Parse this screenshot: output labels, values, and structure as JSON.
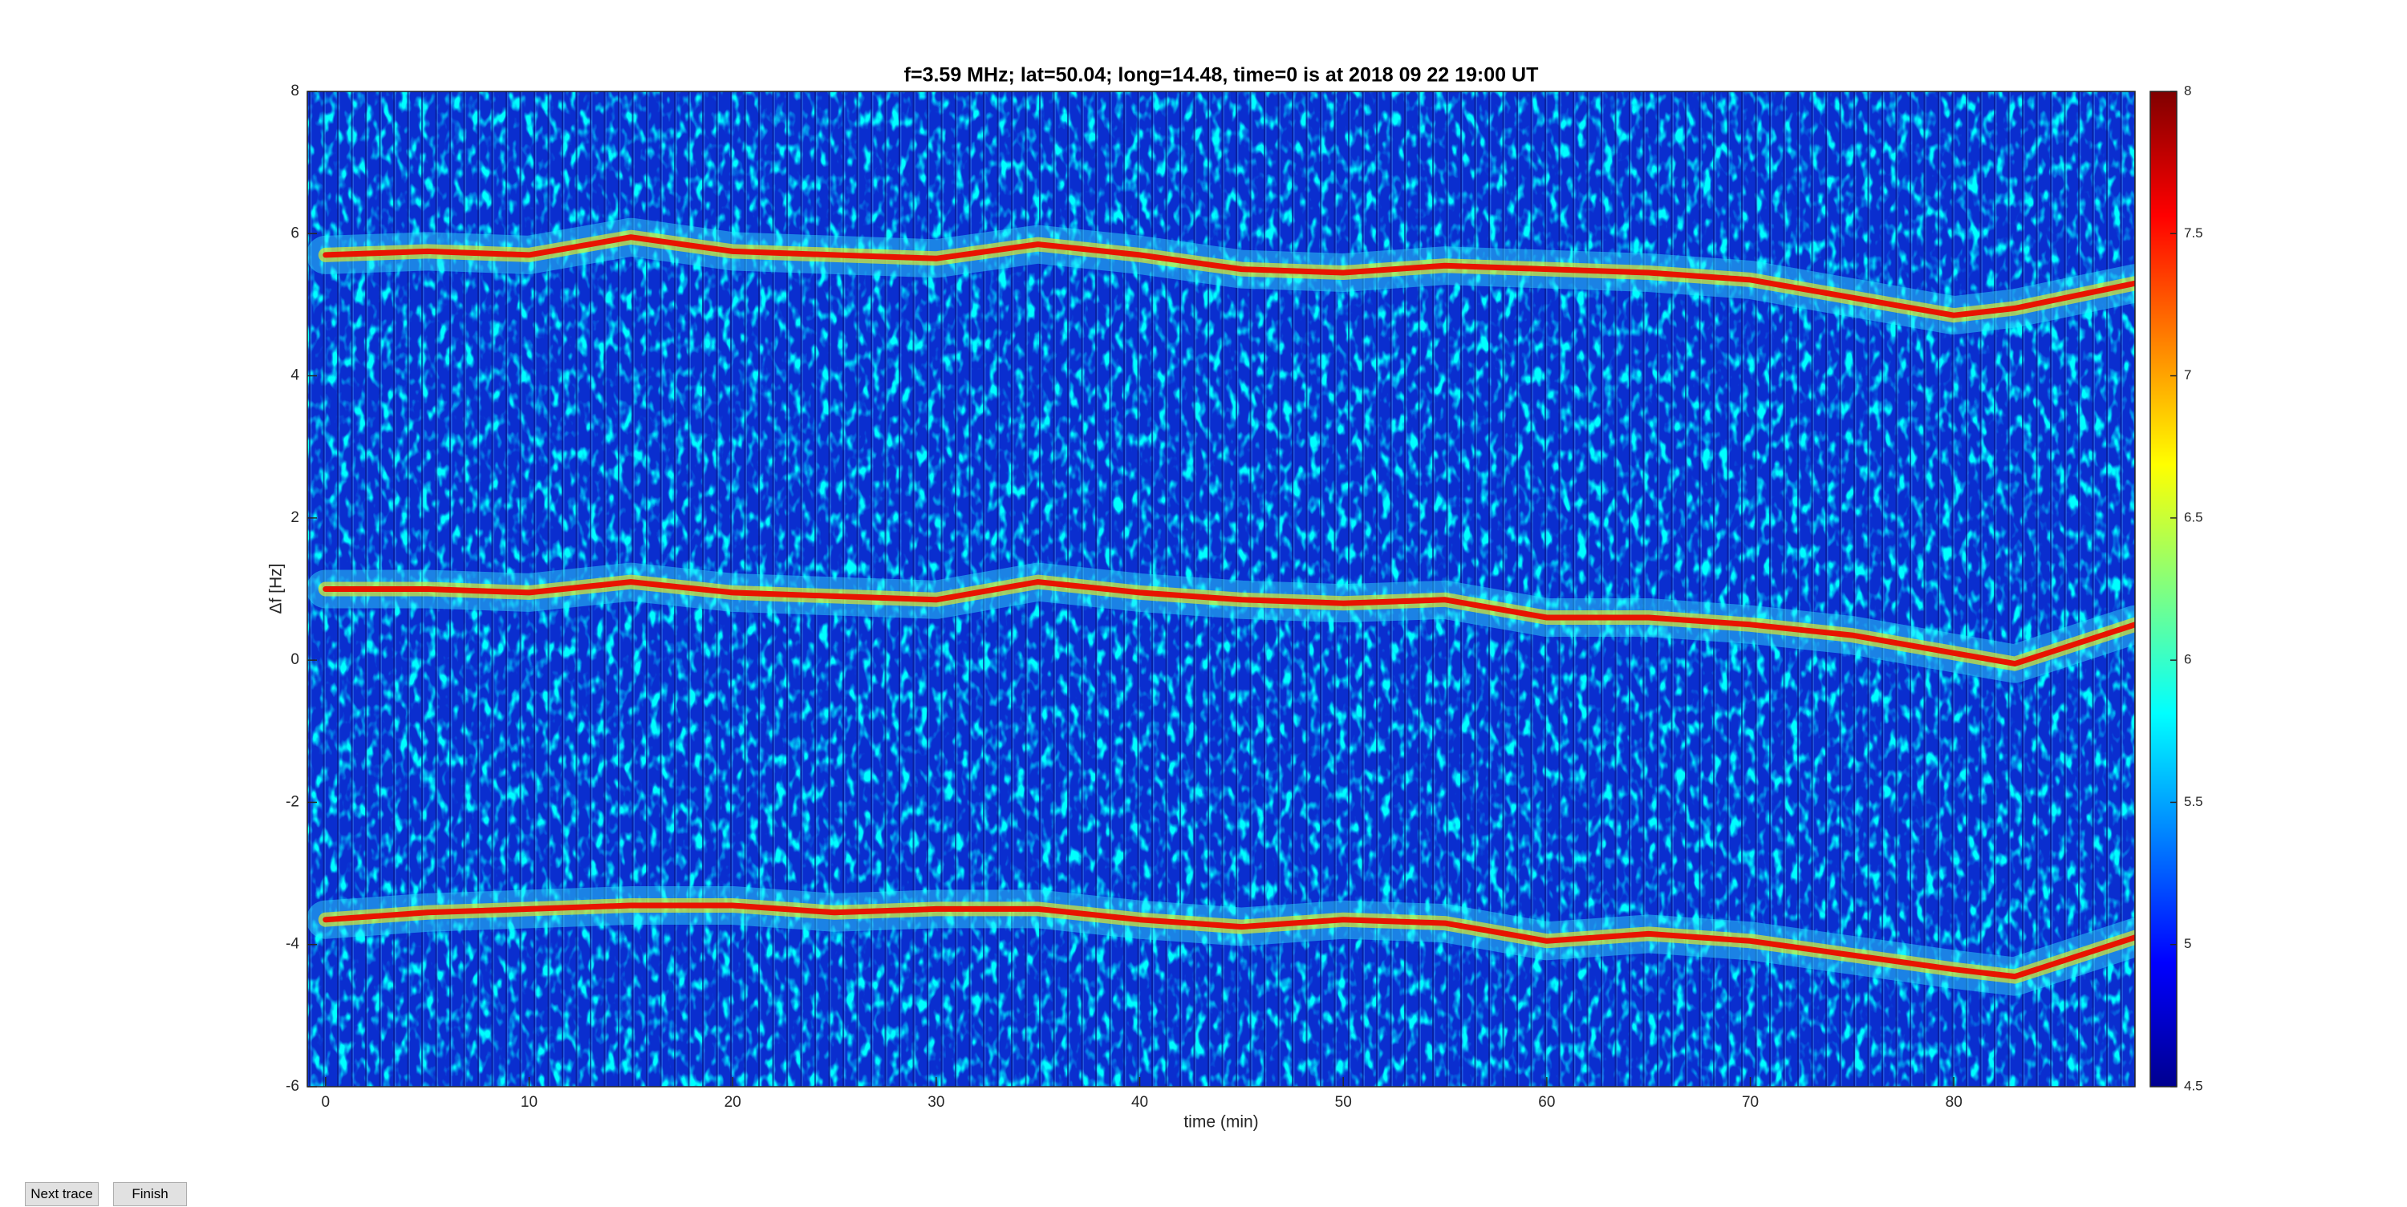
{
  "chart_data": {
    "type": "spectrogram",
    "title": "f=3.59 MHz;  lat=50.04; long=14.48, time=0 is at 2018 09 22 19:00 UT",
    "xlabel": "time (min)",
    "ylabel": "Δf [Hz]",
    "x": [
      0,
      5,
      10,
      15,
      20,
      25,
      30,
      35,
      40,
      45,
      50,
      55,
      60,
      65,
      70,
      75,
      80,
      83,
      88.9
    ],
    "series": [
      {
        "color": "#e81400",
        "values": [
          5.7,
          5.75,
          5.7,
          5.95,
          5.75,
          5.7,
          5.65,
          5.85,
          5.7,
          5.5,
          5.45,
          5.55,
          5.5,
          5.45,
          5.35,
          5.1,
          4.85,
          4.95,
          5.3
        ]
      },
      {
        "color": "#e81400",
        "values": [
          1.0,
          1.0,
          0.95,
          1.1,
          0.95,
          0.9,
          0.85,
          1.1,
          0.95,
          0.85,
          0.8,
          0.85,
          0.6,
          0.6,
          0.5,
          0.35,
          0.1,
          -0.05,
          0.5
        ]
      },
      {
        "color": "#e81400",
        "values": [
          -3.65,
          -3.55,
          -3.5,
          -3.45,
          -3.45,
          -3.55,
          -3.5,
          -3.5,
          -3.65,
          -3.75,
          -3.65,
          -3.7,
          -3.95,
          -3.85,
          -3.95,
          -4.15,
          -4.35,
          -4.45,
          -3.9
        ]
      }
    ],
    "xlim": [
      -0.9,
      88.9
    ],
    "xticks": [
      0,
      10,
      20,
      30,
      40,
      50,
      60,
      70,
      80
    ],
    "ylim": [
      -6,
      8
    ],
    "yticks": [
      -6,
      -4,
      -2,
      0,
      2,
      4,
      6,
      8
    ],
    "clim": [
      4.5,
      8
    ],
    "cticks": [
      4.5,
      5,
      5.5,
      6,
      6.5,
      7,
      7.5,
      8
    ],
    "colormap": [
      "#00008f",
      "#0000ff",
      "#0080ff",
      "#00ffff",
      "#80ff80",
      "#ffff00",
      "#ff8000",
      "#ff0000",
      "#800000"
    ]
  },
  "ui": {
    "buttons": [
      "Next trace",
      "Finish"
    ]
  }
}
